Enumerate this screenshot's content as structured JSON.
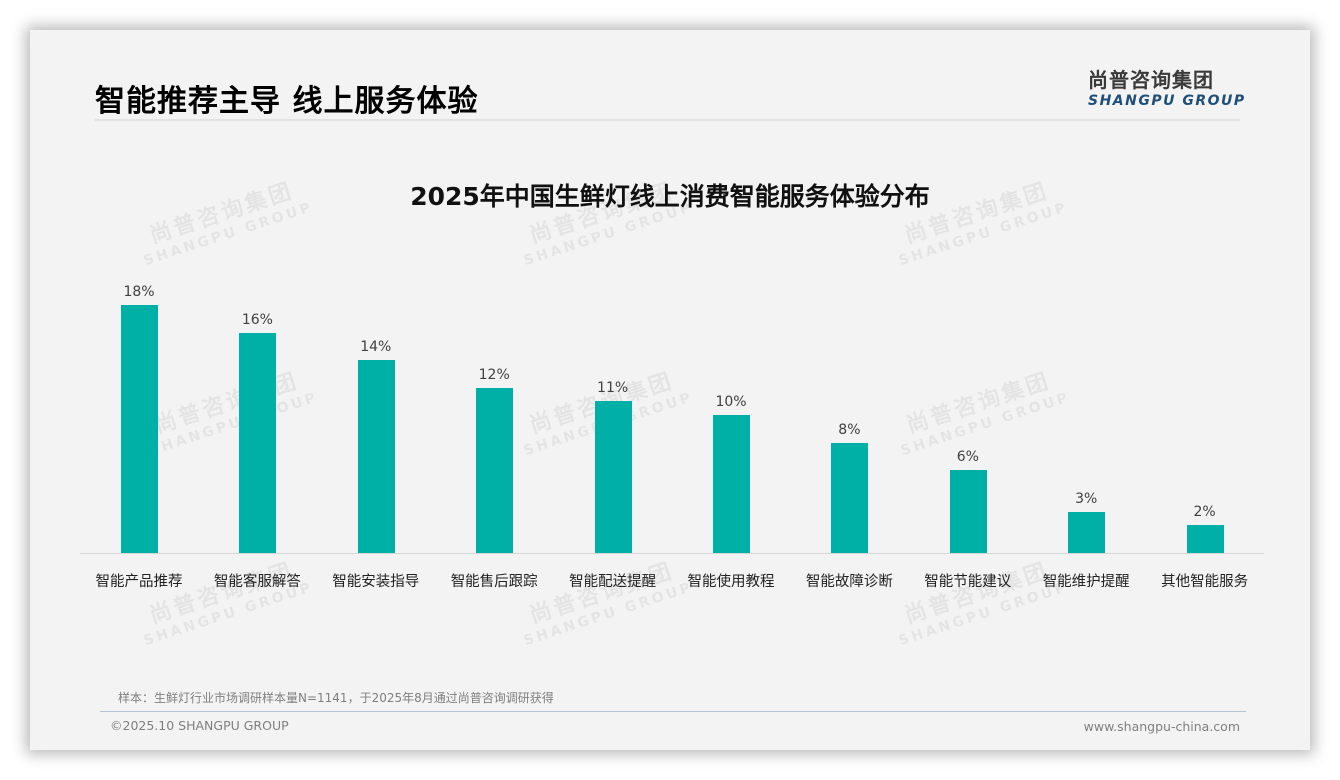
{
  "header": {
    "title": "智能推荐主导 线上服务体验",
    "logo_cn": "尚普咨询集团",
    "logo_en": "SHANGPU GROUP"
  },
  "watermark": {
    "cn": "尚普咨询集团",
    "en": "SHANGPU GROUP"
  },
  "chart_data": {
    "type": "bar",
    "title": "2025年中国生鲜灯线上消费智能服务体验分布",
    "xlabel": "",
    "ylabel": "",
    "ylim": [
      0,
      20
    ],
    "grid": false,
    "legend": null,
    "color": "#00b0a6",
    "categories": [
      "智能产品推荐",
      "智能客服解答",
      "智能安装指导",
      "智能售后跟踪",
      "智能配送提醒",
      "智能使用教程",
      "智能故障诊断",
      "智能节能建议",
      "智能维护提醒",
      "其他智能服务"
    ],
    "values": [
      18,
      16,
      14,
      12,
      11,
      10,
      8,
      6,
      3,
      2
    ],
    "value_labels": [
      "18%",
      "16%",
      "14%",
      "12%",
      "11%",
      "10%",
      "8%",
      "6%",
      "3%",
      "2%"
    ],
    "unit": "%"
  },
  "footer": {
    "sample_note": "样本：生鲜灯行业市场调研样本量N=1141，于2025年8月通过尚普咨询调研获得",
    "copyright": "©2025.10 SHANGPU GROUP",
    "website": "www.shangpu-china.com"
  }
}
